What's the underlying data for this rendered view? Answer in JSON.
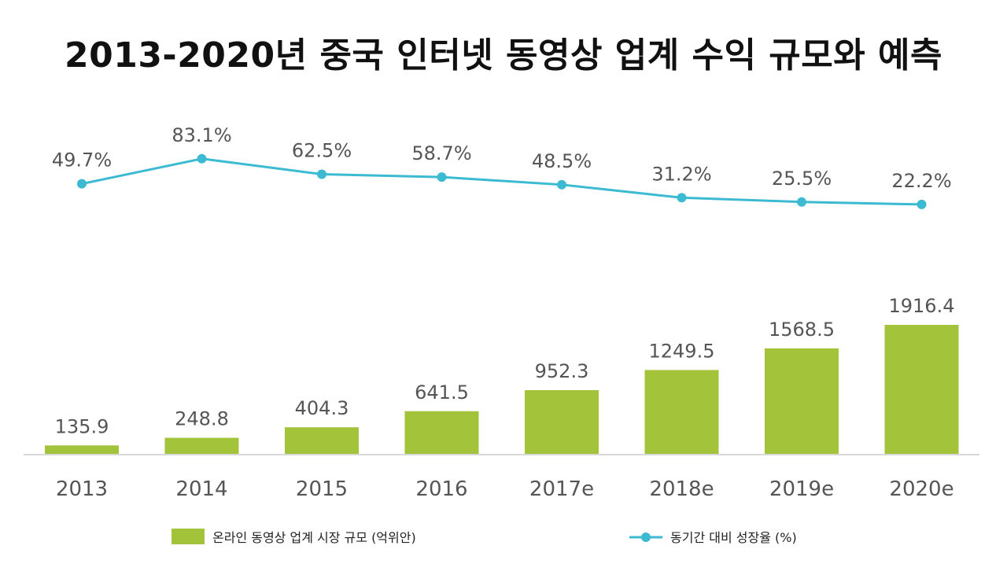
{
  "chart_data": {
    "type": "bar",
    "title": "2013-2020년 중국 인터넷 동영상 업계 수익 규모와 예측",
    "categories": [
      "2013",
      "2014",
      "2015",
      "2016",
      "2017e",
      "2018e",
      "2019e",
      "2020e"
    ],
    "series": [
      {
        "name": "온라인 동영상 업계 시장 규모 (억위안)",
        "type": "bar",
        "values": [
          135.9,
          248.8,
          404.3,
          641.5,
          952.3,
          1249.5,
          1568.5,
          1916.4
        ],
        "labels": [
          "135.9",
          "248.8",
          "404.3",
          "641.5",
          "952.3",
          "1249.5",
          "1568.5",
          "1916.4"
        ]
      },
      {
        "name": "동기간 대비 성장율 (%)",
        "type": "line",
        "values": [
          49.7,
          83.1,
          62.5,
          58.7,
          48.5,
          31.2,
          25.5,
          22.2
        ],
        "labels": [
          "49.7%",
          "83.1%",
          "62.5%",
          "58.7%",
          "48.5%",
          "31.2%",
          "25.5%",
          "22.2%"
        ]
      }
    ],
    "bar_ylim": [
      0,
      2100
    ],
    "line_ylim": [
      0,
      100
    ],
    "colors": {
      "bar": "#a3c33a",
      "line": "#3bbad1",
      "axis": "#d8d8d8",
      "text": "#555555"
    },
    "legend_position": "bottom"
  }
}
